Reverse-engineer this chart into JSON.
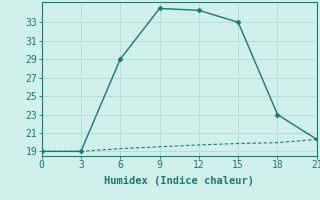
{
  "line1_x": [
    0,
    3,
    6,
    9,
    12,
    15,
    18,
    21
  ],
  "line1_y": [
    19,
    19,
    29,
    34.5,
    34.3,
    33,
    23,
    20.3
  ],
  "line2_x": [
    0,
    3,
    6,
    9,
    12,
    15,
    18,
    21
  ],
  "line2_y": [
    19,
    19,
    19.3,
    19.5,
    19.7,
    19.85,
    19.95,
    20.3
  ],
  "color": "#1a7a6e",
  "bg_color": "#cff0eb",
  "grid_color": "#b8ddd8",
  "xlabel": "Humidex (Indice chaleur)",
  "xlim": [
    0,
    21
  ],
  "ylim": [
    18.5,
    35.2
  ],
  "xticks": [
    0,
    3,
    6,
    9,
    12,
    15,
    18,
    21
  ],
  "yticks": [
    19,
    21,
    23,
    25,
    27,
    29,
    31,
    33
  ],
  "label_fontsize": 7.5,
  "tick_fontsize": 7.0
}
